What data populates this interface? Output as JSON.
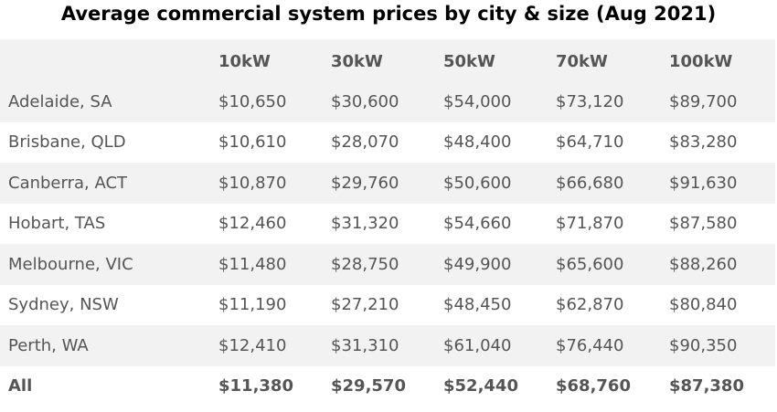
{
  "title": "Average commercial system prices by city & size (Aug 2021)",
  "chart_data": {
    "type": "table",
    "title": "Average commercial system prices by city & size (Aug 2021)",
    "columns": [
      "",
      "10kW",
      "30kW",
      "50kW",
      "70kW",
      "100kW"
    ],
    "rows": [
      {
        "city": "Adelaide, SA",
        "values": [
          "$10,650",
          "$30,600",
          "$54,000",
          "$73,120",
          "$89,700"
        ]
      },
      {
        "city": "Brisbane, QLD",
        "values": [
          "$10,610",
          "$28,070",
          "$48,400",
          "$64,710",
          "$83,280"
        ]
      },
      {
        "city": "Canberra, ACT",
        "values": [
          "$10,870",
          "$29,760",
          "$50,600",
          "$66,680",
          "$91,630"
        ]
      },
      {
        "city": "Hobart, TAS",
        "values": [
          "$12,460",
          "$31,320",
          "$54,660",
          "$71,870",
          "$87,580"
        ]
      },
      {
        "city": "Melbourne, VIC",
        "values": [
          "$11,480",
          "$28,750",
          "$49,900",
          "$65,600",
          "$88,260"
        ]
      },
      {
        "city": "Sydney, NSW",
        "values": [
          "$11,190",
          "$27,210",
          "$48,450",
          "$62,870",
          "$80,840"
        ]
      },
      {
        "city": "Perth, WA",
        "values": [
          "$12,410",
          "$31,310",
          "$61,040",
          "$76,440",
          "$90,350"
        ]
      },
      {
        "city": "All",
        "values": [
          "$11,380",
          "$29,570",
          "$52,440",
          "$68,760",
          "$87,380"
        ]
      }
    ],
    "total_row_label": "All"
  },
  "colors": {
    "stripe": "#f2f2f2",
    "text": "#555555",
    "title": "#000000"
  }
}
